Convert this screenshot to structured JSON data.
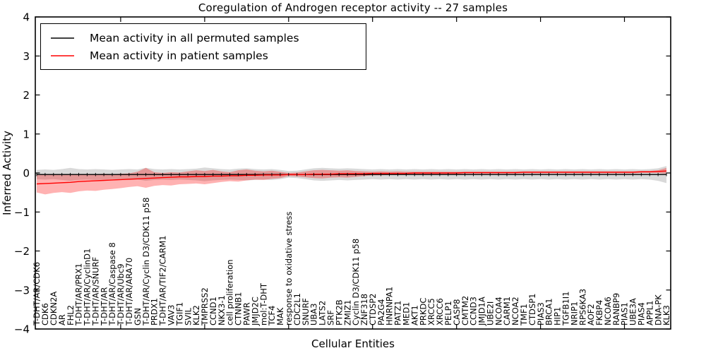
{
  "chart_data": {
    "type": "line",
    "title": "Coregulation of Androgen receptor activity -- 27 samples",
    "xlabel": "Cellular Entities",
    "ylabel": "Inferred Activity",
    "ylim": [
      -4,
      4
    ],
    "grid": false,
    "legend_position": "upper left",
    "yticks": [
      4,
      3,
      2,
      1,
      0,
      -1,
      -2,
      -3,
      -4
    ],
    "ytick_labels": [
      "4",
      "3",
      "2",
      "1",
      "0",
      "−1",
      "−2",
      "−3",
      "−4"
    ],
    "top_tick_indices": [
      10,
      20,
      30,
      40,
      50,
      60,
      70
    ],
    "categories": [
      "T-DHT/AR/CDK6",
      "CDK6",
      "CDKN2A",
      "AR",
      "FHL2",
      "T-DHT/AR/PRX1",
      "T-DHT/AR/CyclinD1",
      "T-DHT/AR/SNURF",
      "T-DHT/AR",
      "T-DHT/AR/Caspase 8",
      "T-DHT/AR/Ubc9",
      "T-DHT/AR/ARA70",
      "GSN",
      "T-DHT/AR/Cyclin D3/CDK11 p58",
      "PRDX1",
      "T-DHT/AR/TIF2/CARM1",
      "VAV3",
      "TGIF1",
      "SVIL",
      "KLK2",
      "TMPRSS2",
      "CCND1",
      "NKX3-1",
      "cell proliferation",
      "CTNNB1",
      "PAWR",
      "JMJD2C",
      "mol:T-DHT",
      "TCF4",
      "MAK",
      "response to oxidative stress",
      "CDC2L1",
      "SNURF",
      "UBA3",
      "LATS2",
      "SRF",
      "PTK2B",
      "ZMIZ1",
      "Cyclin D3/CDK11 p58",
      "ZNF318",
      "CTDSP2",
      "PA2G4",
      "HNRNPA1",
      "PATZ1",
      "MED1",
      "AKT1",
      "PRKDC",
      "XRCC5",
      "XRCC6",
      "PELP1",
      "CASP8",
      "CMTM2",
      "CCND3",
      "JMJD1A",
      "UBE2I",
      "NCOA4",
      "CARM1",
      "NCOA2",
      "TMF1",
      "CTDSP1",
      "PIAS3",
      "BRCA1",
      "HIP1",
      "TGFB1I1",
      "NRIP1",
      "RPS6KA3",
      "AOF2",
      "FKBP4",
      "NCOA6",
      "RANBP9",
      "PIAS1",
      "UBE3A",
      "PIAS4",
      "APPL1",
      "DNA-PK",
      "KLK3"
    ],
    "series": [
      {
        "name": "Mean activity in all permuted samples",
        "color": "#000000",
        "band_color": "rgba(0,0,0,0.15)",
        "values": [
          -0.04,
          -0.04,
          -0.04,
          -0.04,
          -0.04,
          -0.04,
          -0.04,
          -0.04,
          -0.04,
          -0.04,
          -0.04,
          -0.04,
          -0.04,
          -0.04,
          -0.04,
          -0.04,
          -0.04,
          -0.04,
          -0.04,
          -0.04,
          -0.04,
          -0.04,
          -0.04,
          -0.04,
          -0.04,
          -0.04,
          -0.04,
          -0.04,
          -0.04,
          -0.04,
          -0.04,
          -0.04,
          -0.04,
          -0.04,
          -0.04,
          -0.04,
          -0.04,
          -0.04,
          -0.04,
          -0.04,
          -0.04,
          -0.04,
          -0.04,
          -0.04,
          -0.04,
          -0.04,
          -0.04,
          -0.04,
          -0.04,
          -0.04,
          -0.04,
          -0.04,
          -0.04,
          -0.04,
          -0.04,
          -0.04,
          -0.04,
          -0.04,
          -0.04,
          -0.04,
          -0.04,
          -0.04,
          -0.04,
          -0.04,
          -0.04,
          -0.04,
          -0.04,
          -0.04,
          -0.04,
          -0.04,
          -0.04,
          -0.04,
          -0.04,
          -0.04,
          -0.04,
          -0.04
        ],
        "band_upper": [
          0.08,
          0.09,
          0.08,
          0.1,
          0.13,
          0.1,
          0.09,
          0.1,
          0.09,
          0.08,
          0.09,
          0.1,
          0.09,
          0.13,
          0.1,
          0.09,
          0.1,
          0.09,
          0.1,
          0.11,
          0.14,
          0.12,
          0.1,
          0.09,
          0.11,
          0.12,
          0.1,
          0.09,
          0.1,
          0.08,
          0.05,
          0.06,
          0.09,
          0.12,
          0.13,
          0.12,
          0.11,
          0.12,
          0.11,
          0.1,
          0.09,
          0.1,
          0.09,
          0.1,
          0.09,
          0.1,
          0.09,
          0.1,
          0.09,
          0.1,
          0.09,
          0.1,
          0.09,
          0.1,
          0.09,
          0.1,
          0.09,
          0.1,
          0.09,
          0.1,
          0.09,
          0.1,
          0.09,
          0.1,
          0.09,
          0.1,
          0.09,
          0.1,
          0.09,
          0.1,
          0.09,
          0.1,
          0.09,
          0.1,
          0.12,
          0.18
        ],
        "band_lower": [
          -0.16,
          -0.17,
          -0.16,
          -0.18,
          -0.2,
          -0.18,
          -0.17,
          -0.18,
          -0.17,
          -0.16,
          -0.17,
          -0.18,
          -0.17,
          -0.2,
          -0.18,
          -0.17,
          -0.18,
          -0.17,
          -0.18,
          -0.19,
          -0.21,
          -0.19,
          -0.18,
          -0.17,
          -0.18,
          -0.19,
          -0.18,
          -0.17,
          -0.18,
          -0.16,
          -0.12,
          -0.13,
          -0.16,
          -0.19,
          -0.2,
          -0.19,
          -0.18,
          -0.19,
          -0.18,
          -0.17,
          -0.16,
          -0.17,
          -0.16,
          -0.17,
          -0.16,
          -0.17,
          -0.16,
          -0.17,
          -0.16,
          -0.17,
          -0.16,
          -0.17,
          -0.16,
          -0.17,
          -0.16,
          -0.17,
          -0.16,
          -0.17,
          -0.16,
          -0.17,
          -0.16,
          -0.17,
          -0.16,
          -0.17,
          -0.16,
          -0.17,
          -0.16,
          -0.17,
          -0.16,
          -0.17,
          -0.16,
          -0.17,
          -0.16,
          -0.17,
          -0.2,
          -0.26
        ]
      },
      {
        "name": "Mean activity in patient samples",
        "color": "#ff0000",
        "band_color": "rgba(255,0,0,0.30)",
        "values": [
          -0.28,
          -0.27,
          -0.26,
          -0.25,
          -0.24,
          -0.22,
          -0.21,
          -0.2,
          -0.19,
          -0.18,
          -0.17,
          -0.16,
          -0.15,
          -0.14,
          -0.13,
          -0.12,
          -0.11,
          -0.1,
          -0.1,
          -0.09,
          -0.09,
          -0.08,
          -0.08,
          -0.07,
          -0.07,
          -0.06,
          -0.06,
          -0.05,
          -0.05,
          -0.05,
          -0.04,
          -0.04,
          -0.04,
          -0.03,
          -0.03,
          -0.03,
          -0.02,
          -0.02,
          -0.02,
          -0.02,
          -0.01,
          -0.01,
          -0.01,
          -0.01,
          -0.01,
          0.0,
          0.0,
          0.0,
          0.0,
          0.0,
          0.0,
          0.01,
          0.01,
          0.01,
          0.01,
          0.01,
          0.01,
          0.01,
          0.02,
          0.02,
          0.02,
          0.02,
          0.02,
          0.02,
          0.02,
          0.02,
          0.02,
          0.02,
          0.02,
          0.02,
          0.02,
          0.02,
          0.03,
          0.03,
          0.04,
          0.05
        ],
        "band_upper": [
          -0.03,
          -0.04,
          -0.03,
          -0.05,
          -0.04,
          -0.03,
          -0.04,
          -0.03,
          -0.02,
          -0.03,
          -0.02,
          -0.01,
          0.03,
          0.13,
          0.02,
          0.0,
          0.02,
          0.01,
          0.04,
          0.07,
          0.05,
          0.08,
          0.04,
          0.02,
          0.07,
          0.09,
          0.06,
          0.04,
          0.06,
          0.03,
          0.0,
          0.01,
          0.04,
          0.07,
          0.08,
          0.07,
          0.06,
          0.07,
          0.05,
          0.04,
          0.03,
          0.04,
          0.03,
          0.04,
          0.03,
          0.03,
          0.03,
          0.03,
          0.03,
          0.03,
          0.03,
          0.03,
          0.03,
          0.03,
          0.03,
          0.03,
          0.03,
          0.03,
          0.04,
          0.04,
          0.04,
          0.04,
          0.04,
          0.04,
          0.04,
          0.04,
          0.04,
          0.04,
          0.04,
          0.04,
          0.04,
          0.04,
          0.05,
          0.05,
          0.07,
          0.13
        ],
        "band_lower": [
          -0.5,
          -0.55,
          -0.51,
          -0.49,
          -0.51,
          -0.47,
          -0.45,
          -0.46,
          -0.43,
          -0.41,
          -0.39,
          -0.36,
          -0.34,
          -0.38,
          -0.33,
          -0.31,
          -0.32,
          -0.29,
          -0.28,
          -0.27,
          -0.29,
          -0.26,
          -0.23,
          -0.21,
          -0.22,
          -0.19,
          -0.17,
          -0.18,
          -0.15,
          -0.13,
          -0.08,
          -0.09,
          -0.11,
          -0.13,
          -0.14,
          -0.12,
          -0.11,
          -0.12,
          -0.1,
          -0.08,
          -0.06,
          -0.06,
          -0.05,
          -0.05,
          -0.04,
          -0.04,
          -0.03,
          -0.03,
          -0.03,
          -0.03,
          -0.03,
          -0.02,
          -0.02,
          -0.02,
          -0.02,
          -0.02,
          -0.02,
          -0.02,
          -0.01,
          -0.01,
          -0.01,
          -0.01,
          -0.01,
          -0.01,
          -0.01,
          -0.01,
          -0.01,
          -0.01,
          -0.01,
          -0.01,
          -0.01,
          -0.01,
          0.0,
          0.0,
          0.0,
          -0.02
        ]
      }
    ]
  }
}
